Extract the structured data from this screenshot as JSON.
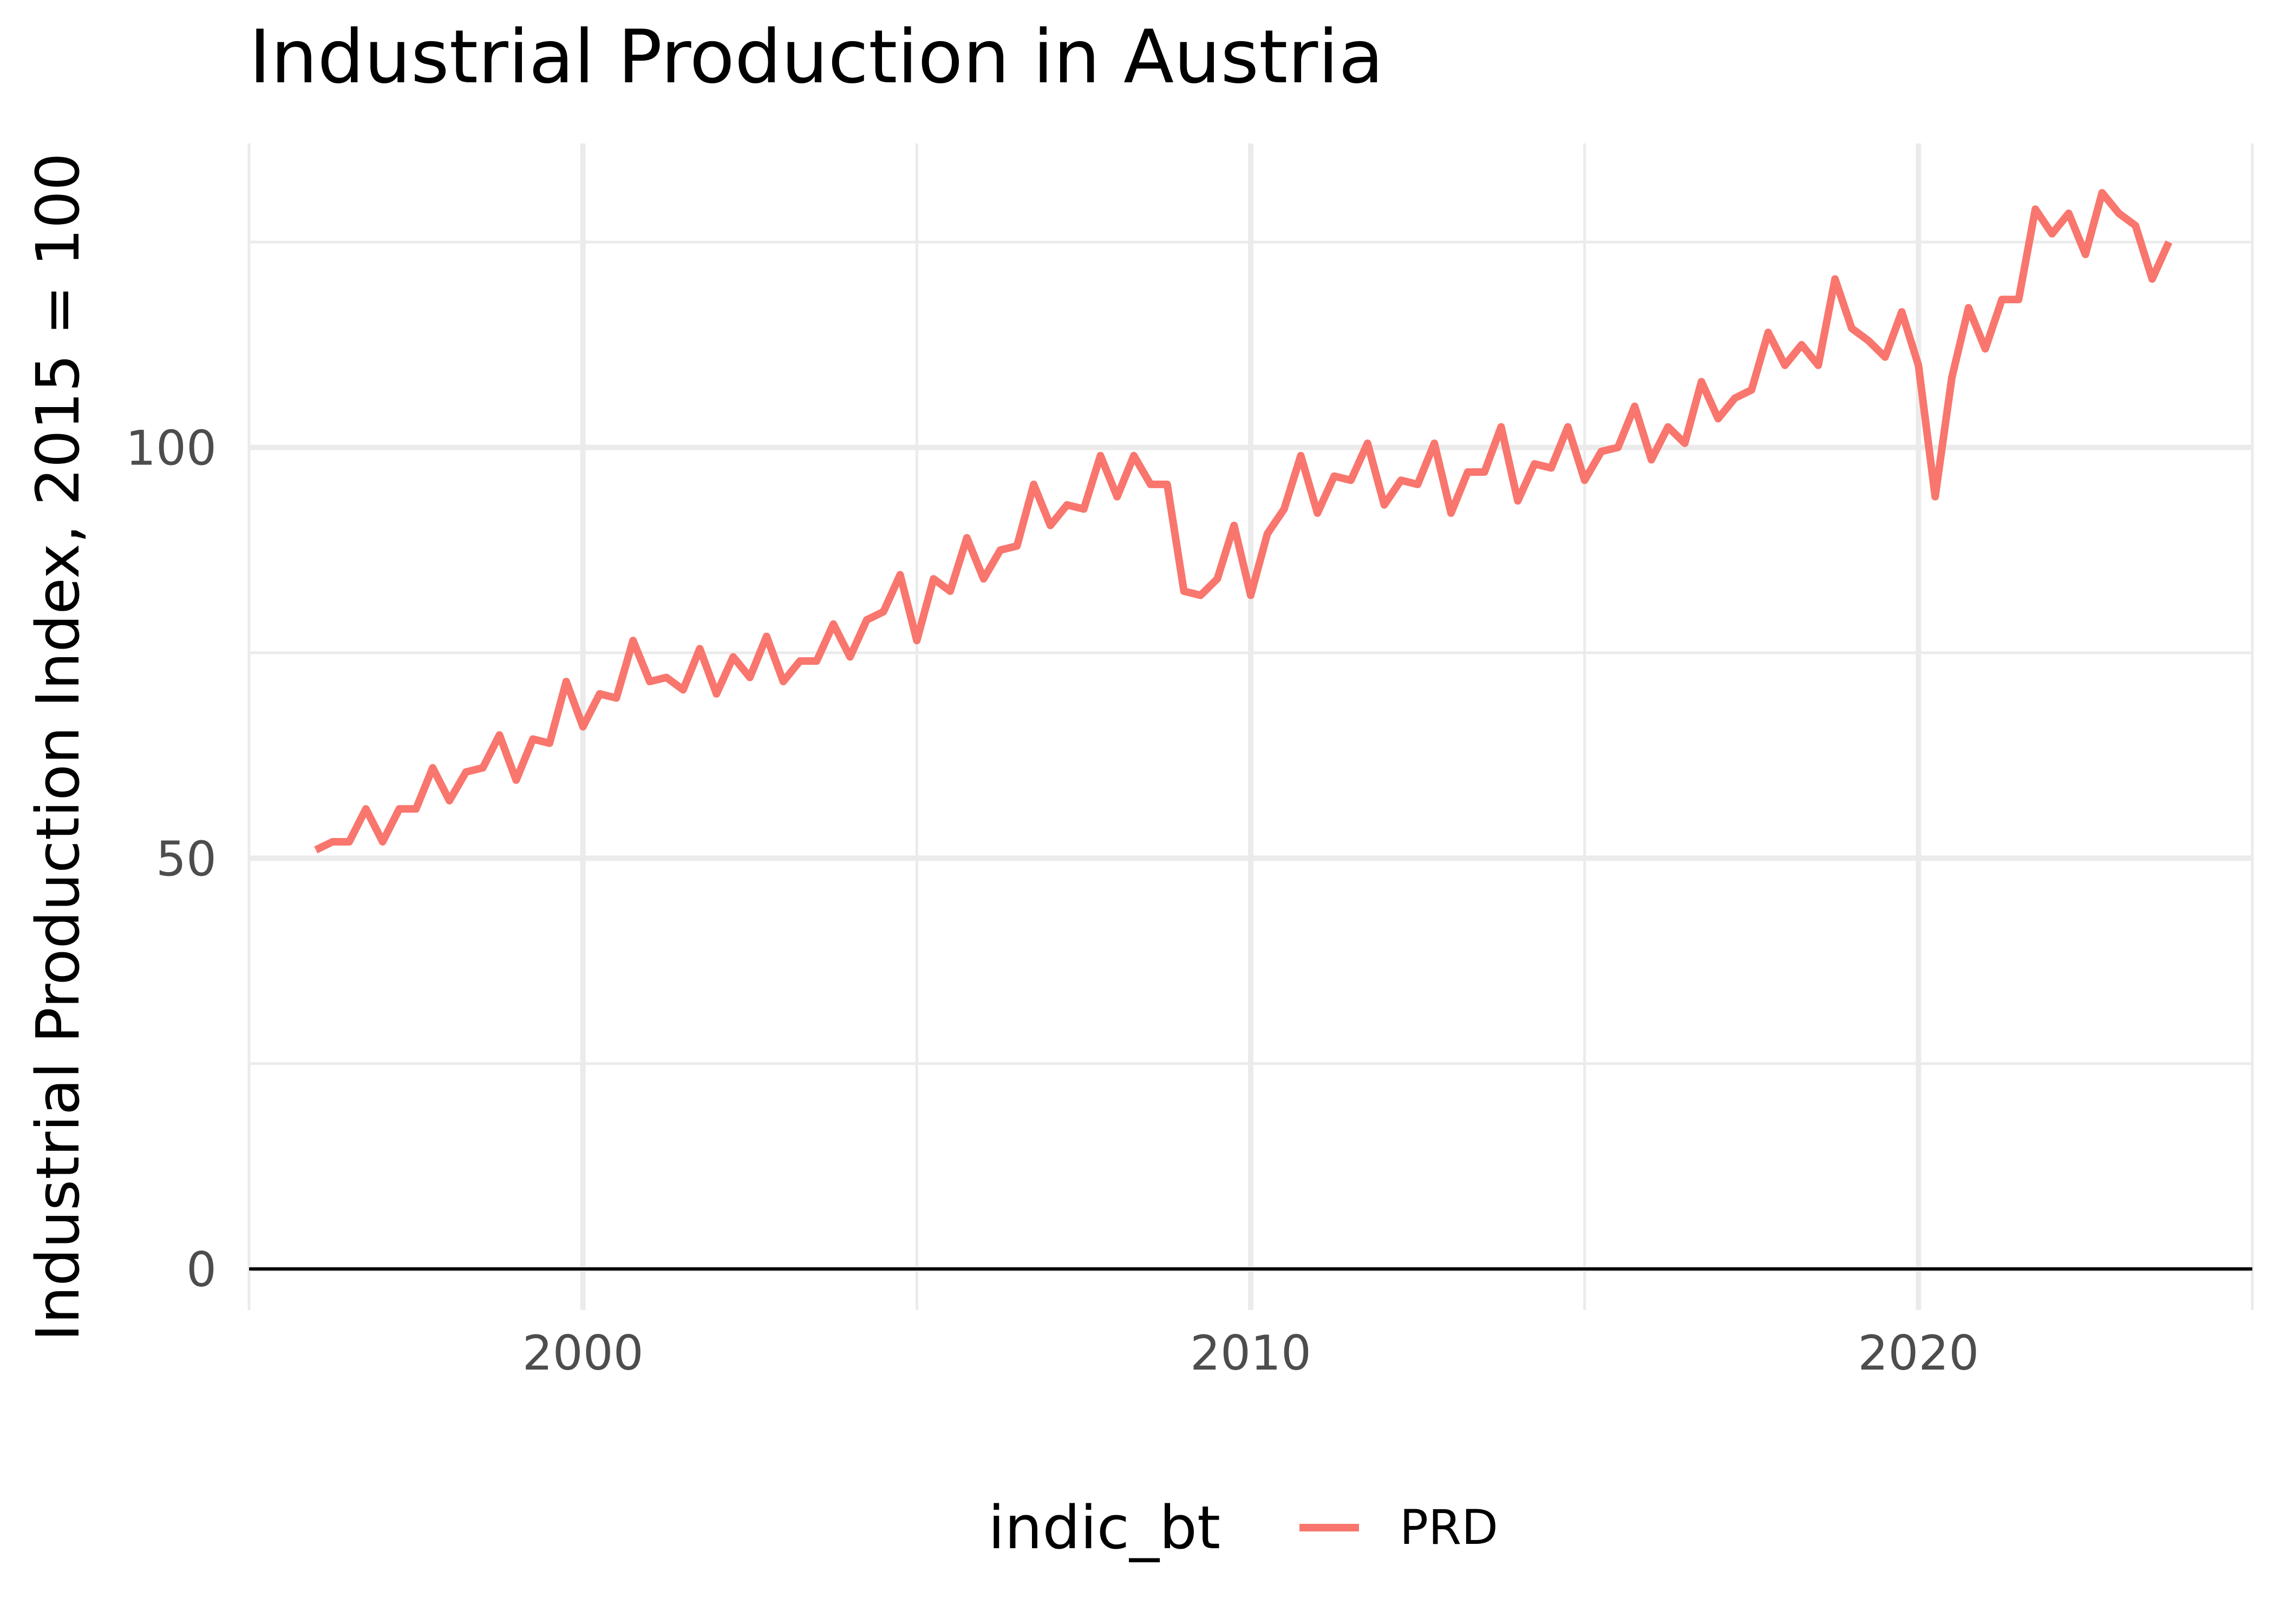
{
  "chart_data": {
    "type": "line",
    "title": "Industrial Production in Austria",
    "xlabel": "",
    "ylabel": "Industrial Production Index, 2015 = 100",
    "xlim": [
      1995,
      2025
    ],
    "ylim": [
      -5,
      137
    ],
    "x_ticks": [
      2000,
      2010,
      2020
    ],
    "x_tick_labels": [
      "2000",
      "2010",
      "2020"
    ],
    "y_ticks": [
      0,
      50,
      100
    ],
    "y_tick_labels": [
      "0",
      "50",
      "100"
    ],
    "grid": true,
    "zero_line": true,
    "legend": {
      "title": "indic_bt",
      "position": "bottom",
      "entries": [
        "PRD"
      ]
    },
    "colors": {
      "series": "#f8766d",
      "grid": "#ebebeb",
      "zero_line": "#000000"
    },
    "series": [
      {
        "name": "PRD",
        "x": [
          1996.0,
          1996.25,
          1996.5,
          1996.75,
          1997.0,
          1997.25,
          1997.5,
          1997.75,
          1998.0,
          1998.25,
          1998.5,
          1998.75,
          1999.0,
          1999.25,
          1999.5,
          1999.75,
          2000.0,
          2000.25,
          2000.5,
          2000.75,
          2001.0,
          2001.25,
          2001.5,
          2001.75,
          2002.0,
          2002.25,
          2002.5,
          2002.75,
          2003.0,
          2003.25,
          2003.5,
          2003.75,
          2004.0,
          2004.25,
          2004.5,
          2004.75,
          2005.0,
          2005.25,
          2005.5,
          2005.75,
          2006.0,
          2006.25,
          2006.5,
          2006.75,
          2007.0,
          2007.25,
          2007.5,
          2007.75,
          2008.0,
          2008.25,
          2008.5,
          2008.75,
          2009.0,
          2009.25,
          2009.5,
          2009.75,
          2010.0,
          2010.25,
          2010.5,
          2010.75,
          2011.0,
          2011.25,
          2011.5,
          2011.75,
          2012.0,
          2012.25,
          2012.5,
          2012.75,
          2013.0,
          2013.25,
          2013.5,
          2013.75,
          2014.0,
          2014.25,
          2014.5,
          2014.75,
          2015.0,
          2015.25,
          2015.5,
          2015.75,
          2016.0,
          2016.25,
          2016.5,
          2016.75,
          2017.0,
          2017.25,
          2017.5,
          2017.75,
          2018.0,
          2018.25,
          2018.5,
          2018.75,
          2019.0,
          2019.25,
          2019.5,
          2019.75,
          2020.0,
          2020.25,
          2020.5,
          2020.75,
          2021.0,
          2021.25,
          2021.5,
          2021.75,
          2022.0,
          2022.25,
          2022.5,
          2022.75,
          2023.0,
          2023.25,
          2023.5,
          2023.75
        ],
        "values": [
          51,
          52,
          52,
          56,
          52,
          56,
          56,
          61,
          57,
          60.5,
          61,
          65,
          59.5,
          64.5,
          64,
          71.5,
          66,
          70,
          69.5,
          76.5,
          71.5,
          72,
          70.5,
          75.5,
          70,
          74.5,
          72,
          77,
          71.5,
          74,
          74,
          78.5,
          74.5,
          79,
          80,
          84.5,
          76.5,
          84,
          82.5,
          89,
          84,
          87.5,
          88,
          95.5,
          90.5,
          93,
          92.5,
          99,
          94,
          99,
          95.5,
          95.5,
          82.5,
          82,
          84,
          90.5,
          82,
          89.5,
          92.5,
          99,
          92,
          96.5,
          96,
          100.5,
          93,
          96,
          95.5,
          100.5,
          92,
          97,
          97,
          102.5,
          93.5,
          98,
          97.5,
          102.5,
          96,
          99.5,
          100,
          105,
          98.5,
          102.5,
          100.5,
          108,
          103.5,
          106,
          107,
          114,
          110,
          112.5,
          110,
          120.5,
          114.5,
          113,
          111,
          116.5,
          110,
          94,
          108.5,
          117,
          112,
          118,
          118,
          129,
          126,
          128.5,
          123.5,
          131,
          128.5,
          127,
          120.5,
          125
        ]
      }
    ]
  }
}
